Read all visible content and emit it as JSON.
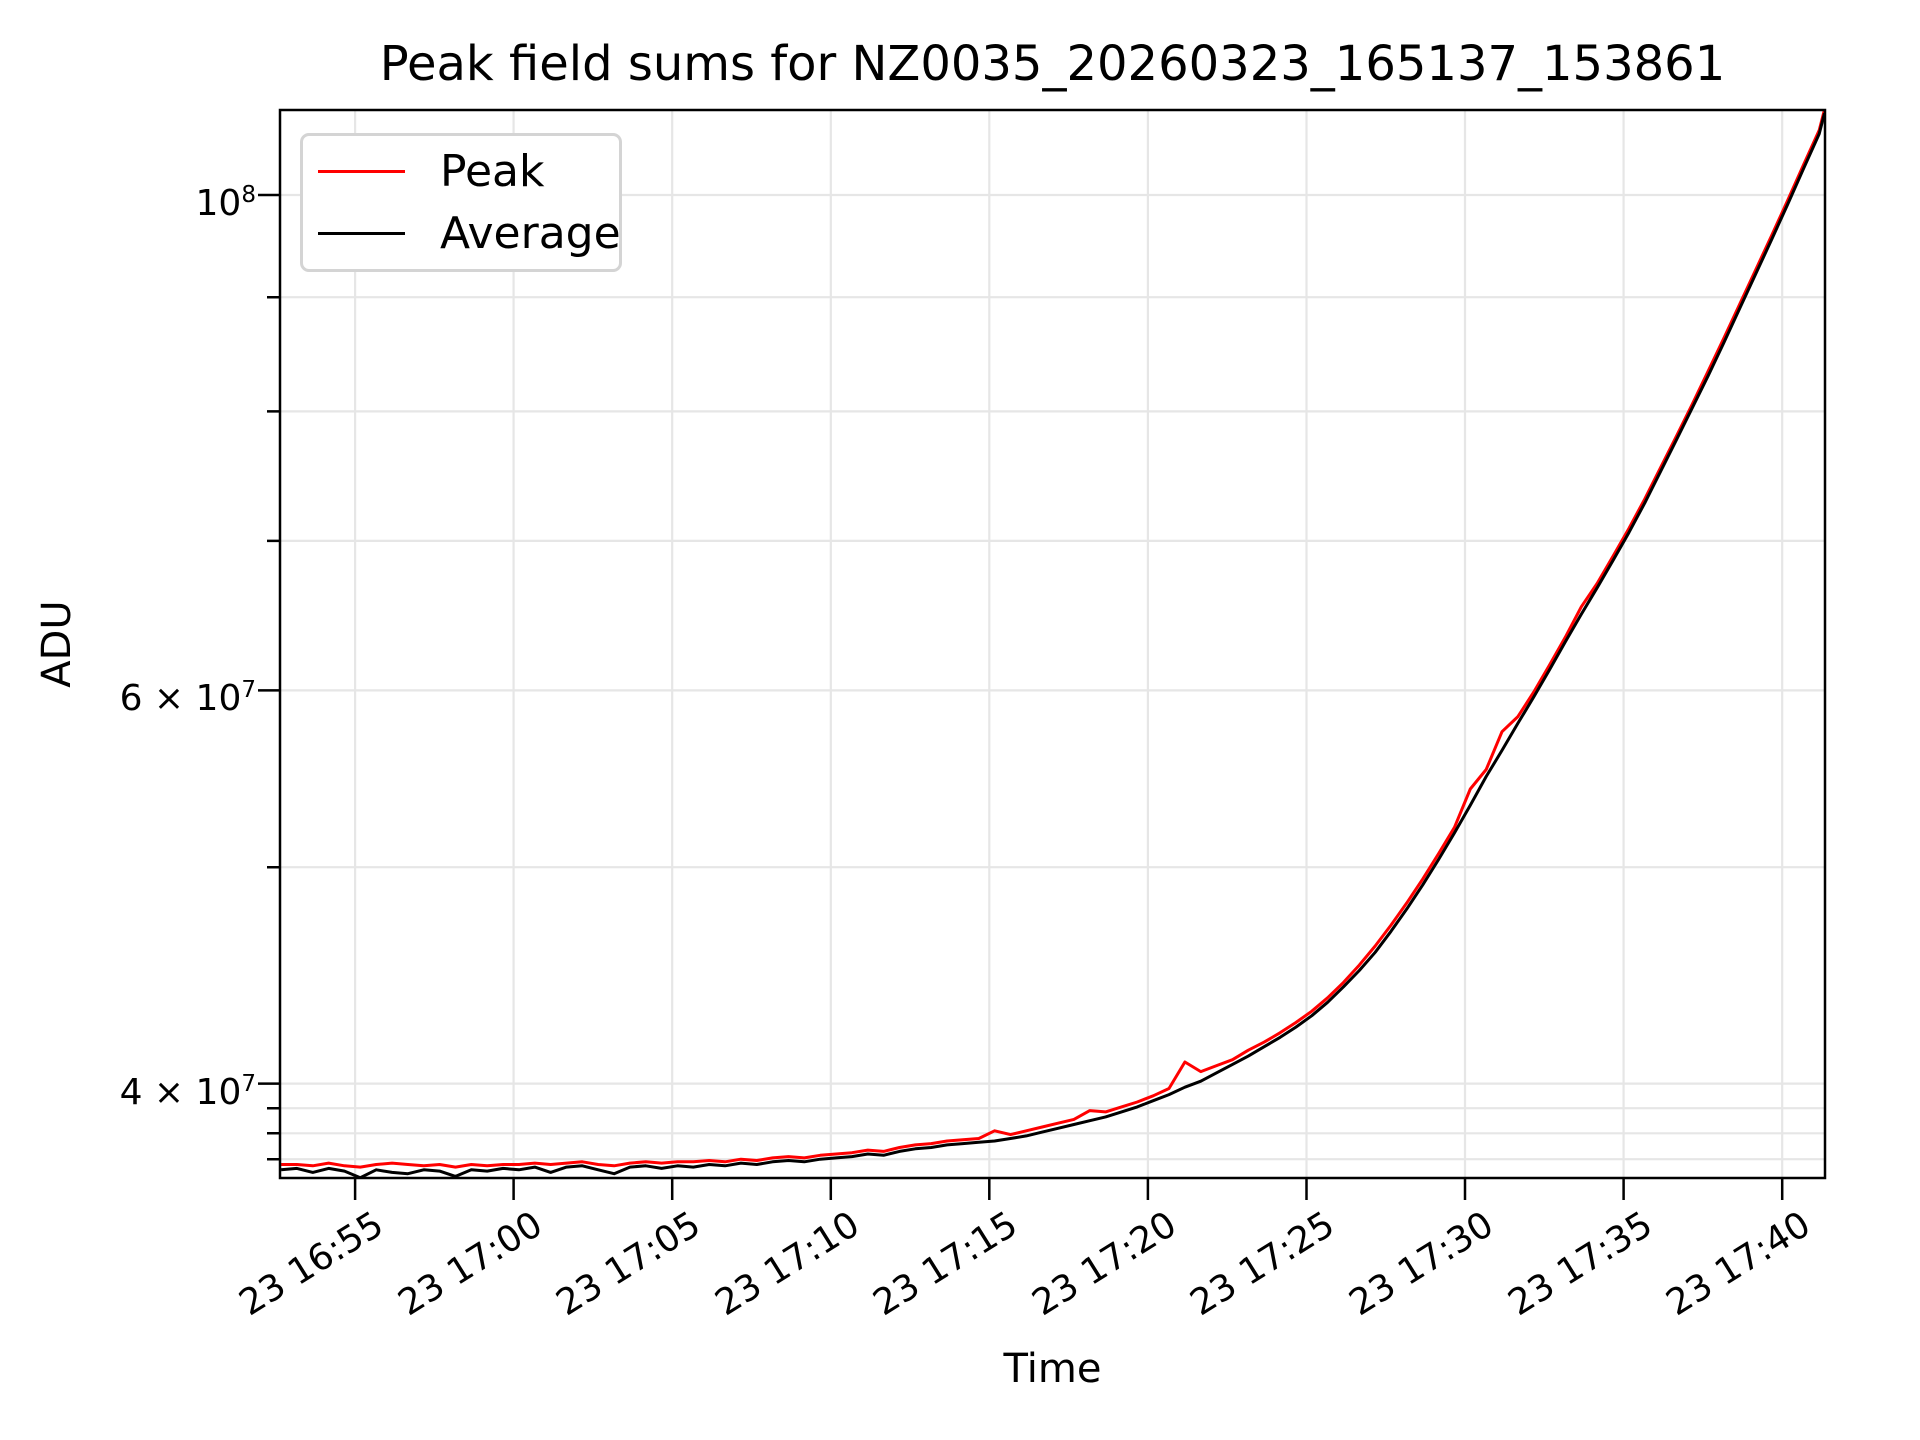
{
  "chart_data": {
    "type": "line",
    "title": "Peak field sums for NZ0035_20260323_165137_153861",
    "xlabel": "Time",
    "ylabel": "ADU",
    "yscale": "log",
    "grid": true,
    "legend_position": "upper left",
    "xlim": [
      "16:52:38",
      "17:41:21"
    ],
    "ylim": [
      36290000.0,
      109160000.0
    ],
    "xticks": [
      {
        "label": "23 16:55",
        "time": "16:55:00"
      },
      {
        "label": "23 17:00",
        "time": "17:00:00"
      },
      {
        "label": "23 17:05",
        "time": "17:05:00"
      },
      {
        "label": "23 17:10",
        "time": "17:10:00"
      },
      {
        "label": "23 17:15",
        "time": "17:15:00"
      },
      {
        "label": "23 17:20",
        "time": "17:20:00"
      },
      {
        "label": "23 17:25",
        "time": "17:25:00"
      },
      {
        "label": "23 17:30",
        "time": "17:30:00"
      },
      {
        "label": "23 17:35",
        "time": "17:35:00"
      },
      {
        "label": "23 17:40",
        "time": "17:40:00"
      }
    ],
    "yticks": [
      {
        "base": "4 × 10",
        "exp": "7",
        "value": 40000000.0
      },
      {
        "base": "6 × 10",
        "exp": "7",
        "value": 60000000.0
      },
      {
        "base": "10",
        "exp": "8",
        "value": 100000000.0
      }
    ],
    "yticks_minor": [
      37000000.0,
      38000000.0,
      39000000.0,
      50000000.0,
      70000000.0,
      80000000.0,
      90000000.0
    ],
    "grid_y_values": [
      37000000.0,
      38000000.0,
      39000000.0,
      40000000.0,
      50000000.0,
      60000000.0,
      70000000.0,
      80000000.0,
      90000000.0,
      100000000.0
    ],
    "colors": {
      "peak": "#ff0000",
      "average": "#000000",
      "grid": "#e6e6e6",
      "axes": "#000000",
      "legend_border": "#d4d4d4"
    },
    "times": [
      "16:52:40",
      "16:53:10",
      "16:53:40",
      "16:54:10",
      "16:54:40",
      "16:55:10",
      "16:55:40",
      "16:56:10",
      "16:56:40",
      "16:57:10",
      "16:57:40",
      "16:58:10",
      "16:58:40",
      "16:59:10",
      "16:59:40",
      "17:00:10",
      "17:00:40",
      "17:01:10",
      "17:01:40",
      "17:02:10",
      "17:02:40",
      "17:03:10",
      "17:03:40",
      "17:04:10",
      "17:04:40",
      "17:05:10",
      "17:05:40",
      "17:06:10",
      "17:06:40",
      "17:07:10",
      "17:07:40",
      "17:08:10",
      "17:08:40",
      "17:09:10",
      "17:09:40",
      "17:10:10",
      "17:10:40",
      "17:11:10",
      "17:11:40",
      "17:12:10",
      "17:12:40",
      "17:13:10",
      "17:13:40",
      "17:14:10",
      "17:14:40",
      "17:15:10",
      "17:15:40",
      "17:16:10",
      "17:16:40",
      "17:17:10",
      "17:17:40",
      "17:18:10",
      "17:18:40",
      "17:19:10",
      "17:19:40",
      "17:20:10",
      "17:20:40",
      "17:21:10",
      "17:21:40",
      "17:22:10",
      "17:22:40",
      "17:23:10",
      "17:23:40",
      "17:24:10",
      "17:24:40",
      "17:25:10",
      "17:25:40",
      "17:26:10",
      "17:26:40",
      "17:27:10",
      "17:27:40",
      "17:28:10",
      "17:28:40",
      "17:29:10",
      "17:29:40",
      "17:30:10",
      "17:30:40",
      "17:31:10",
      "17:31:40",
      "17:32:10",
      "17:32:40",
      "17:33:10",
      "17:33:40",
      "17:34:10",
      "17:34:40",
      "17:35:10",
      "17:35:40",
      "17:36:10",
      "17:36:40",
      "17:37:10",
      "17:37:40",
      "17:38:10",
      "17:38:40",
      "17:39:10",
      "17:39:40",
      "17:40:10",
      "17:40:40",
      "17:41:10",
      "17:41:20"
    ],
    "series": [
      {
        "name": "Peak",
        "color": "#ff0000",
        "values": [
          36800000.0,
          36800000.0,
          36750000.0,
          36850000.0,
          36750000.0,
          36700000.0,
          36800000.0,
          36850000.0,
          36800000.0,
          36750000.0,
          36800000.0,
          36700000.0,
          36800000.0,
          36750000.0,
          36800000.0,
          36800000.0,
          36850000.0,
          36800000.0,
          36850000.0,
          36900000.0,
          36800000.0,
          36750000.0,
          36850000.0,
          36900000.0,
          36850000.0,
          36900000.0,
          36900000.0,
          36950000.0,
          36900000.0,
          37000000.0,
          36950000.0,
          37050000.0,
          37100000.0,
          37050000.0,
          37150000.0,
          37200000.0,
          37250000.0,
          37350000.0,
          37300000.0,
          37450000.0,
          37550000.0,
          37600000.0,
          37700000.0,
          37750000.0,
          37800000.0,
          38100000.0,
          37950000.0,
          38100000.0,
          38250000.0,
          38400000.0,
          38550000.0,
          38900000.0,
          38850000.0,
          39050000.0,
          39250000.0,
          39500000.0,
          39800000.0,
          40900000.0,
          40500000.0,
          40750000.0,
          41000000.0,
          41400000.0,
          41750000.0,
          42150000.0,
          42600000.0,
          43100000.0,
          43700000.0,
          44400000.0,
          45200000.0,
          46100000.0,
          47100000.0,
          48200000.0,
          49400000.0,
          50700000.0,
          52100000.0,
          54200000.0,
          55300000.0,
          57500000.0,
          58400000.0,
          59900000.0,
          61600000.0,
          63400000.0,
          65400000.0,
          67000000.0,
          68900000.0,
          70900000.0,
          73100000.0,
          75500000.0,
          78000000.0,
          80600000.0,
          83400000.0,
          86300000.0,
          89400000.0,
          92600000.0,
          95900000.0,
          99400000.0,
          103100000.0,
          106900000.0,
          109200000.0
        ]
      },
      {
        "name": "Average",
        "color": "#000000",
        "values": [
          36600000.0,
          36650000.0,
          36500000.0,
          36650000.0,
          36550000.0,
          36300000.0,
          36600000.0,
          36500000.0,
          36450000.0,
          36600000.0,
          36550000.0,
          36350000.0,
          36600000.0,
          36550000.0,
          36650000.0,
          36600000.0,
          36700000.0,
          36500000.0,
          36700000.0,
          36750000.0,
          36600000.0,
          36450000.0,
          36700000.0,
          36750000.0,
          36650000.0,
          36750000.0,
          36700000.0,
          36800000.0,
          36750000.0,
          36850000.0,
          36800000.0,
          36900000.0,
          36950000.0,
          36900000.0,
          37000000.0,
          37050000.0,
          37100000.0,
          37200000.0,
          37150000.0,
          37300000.0,
          37400000.0,
          37450000.0,
          37550000.0,
          37600000.0,
          37650000.0,
          37700000.0,
          37800000.0,
          37900000.0,
          38050000.0,
          38200000.0,
          38350000.0,
          38500000.0,
          38650000.0,
          38850000.0,
          39050000.0,
          39300000.0,
          39550000.0,
          39850000.0,
          40100000.0,
          40450000.0,
          40800000.0,
          41150000.0,
          41550000.0,
          41950000.0,
          42400000.0,
          42900000.0,
          43500000.0,
          44200000.0,
          44950000.0,
          45800000.0,
          46800000.0,
          47900000.0,
          49100000.0,
          50400000.0,
          51800000.0,
          53300000.0,
          54900000.0,
          56400000.0,
          58000000.0,
          59600000.0,
          61300000.0,
          63100000.0,
          64900000.0,
          66700000.0,
          68600000.0,
          70600000.0,
          72800000.0,
          75200000.0,
          77700000.0,
          80300000.0,
          83000000.0,
          85900000.0,
          89000000.0,
          92200000.0,
          95500000.0,
          99000000.0,
          102700000.0,
          106500000.0,
          108800000.0
        ]
      }
    ]
  }
}
